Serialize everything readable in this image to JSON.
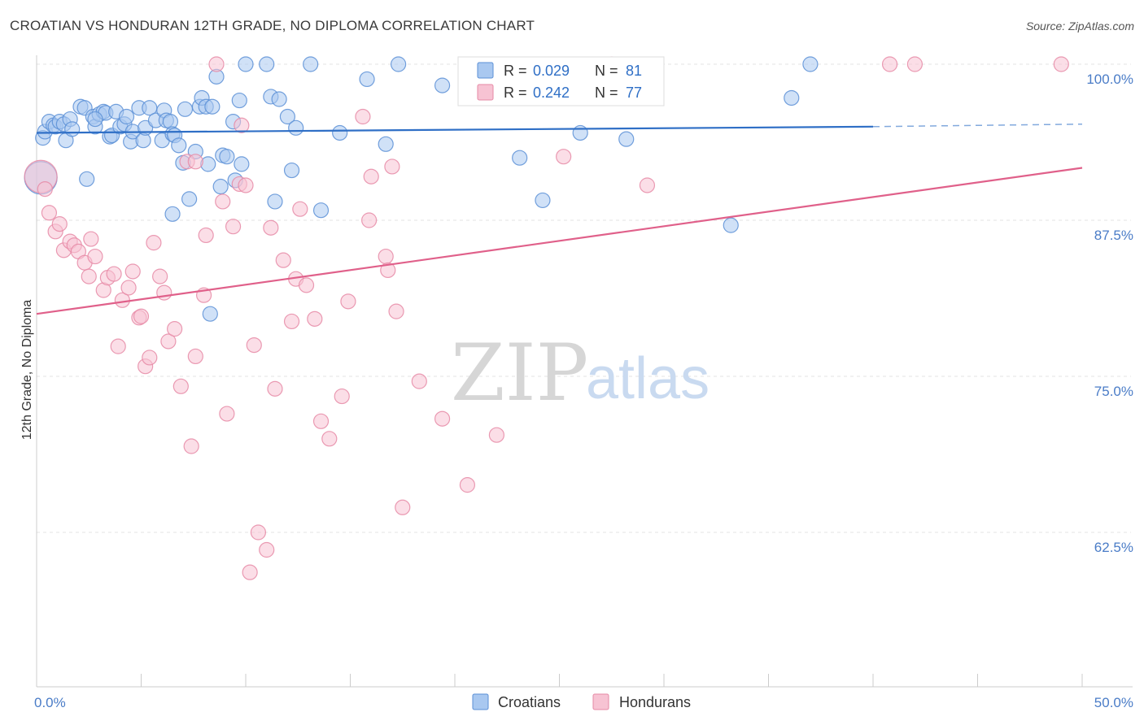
{
  "title": "CROATIAN VS HONDURAN 12TH GRADE, NO DIPLOMA CORRELATION CHART",
  "source": "Source: ZipAtlas.com",
  "watermark": {
    "zip": "ZIP",
    "atlas": "atlas"
  },
  "colors": {
    "croatians_fill": "#a9c8f0",
    "croatians_stroke": "#5b8fd6",
    "croatians_line": "#2f6fc6",
    "hondurans_fill": "#f7c3d3",
    "hondurans_stroke": "#e68aa6",
    "hondurans_line": "#e0608a",
    "tick_text": "#4a7cc7",
    "grid": "#e3e3e3"
  },
  "legend": {
    "rows": [
      {
        "r_label": "R =",
        "r_value": "0.029",
        "n_label": "N =",
        "n_value": "81"
      },
      {
        "r_label": "R =",
        "r_value": "0.242",
        "n_label": "N =",
        "n_value": "77"
      }
    ]
  },
  "chart_data": {
    "type": "scatter",
    "ylabel": "12th Grade, No Diploma",
    "xlim": [
      0,
      50
    ],
    "ylim": [
      50,
      102
    ],
    "x_tick_labels": [
      "0.0%",
      "50.0%"
    ],
    "y_ticks": [
      {
        "value": 100,
        "label": "100.0%"
      },
      {
        "value": 87.5,
        "label": "87.5%"
      },
      {
        "value": 75,
        "label": "75.0%"
      },
      {
        "value": 62.5,
        "label": "62.5%"
      }
    ],
    "grid": true,
    "legend_position": "top-center",
    "series": [
      {
        "name": "Croatians",
        "r": 0.029,
        "n": 81,
        "trend": {
          "x0": 0,
          "y0": 94.5,
          "x1": 40,
          "y1": 95.0,
          "dash_to_x": 50,
          "dash_to_y": 95.2
        },
        "points": [
          [
            0.3,
            94.1
          ],
          [
            0.4,
            94.6
          ],
          [
            0.6,
            95.4
          ],
          [
            0.8,
            95.1
          ],
          [
            0.9,
            95.0
          ],
          [
            1.1,
            95.4
          ],
          [
            1.3,
            95.2
          ],
          [
            1.4,
            93.9
          ],
          [
            1.6,
            95.6
          ],
          [
            1.7,
            94.8
          ],
          [
            2.1,
            96.6
          ],
          [
            2.3,
            96.5
          ],
          [
            2.4,
            90.8
          ],
          [
            2.7,
            95.8
          ],
          [
            2.8,
            95.0
          ],
          [
            3.0,
            96.0
          ],
          [
            3.2,
            96.2
          ],
          [
            3.3,
            96.1
          ],
          [
            3.5,
            94.2
          ],
          [
            3.6,
            94.3
          ],
          [
            3.8,
            96.2
          ],
          [
            4.0,
            95.0
          ],
          [
            4.2,
            95.2
          ],
          [
            4.3,
            95.8
          ],
          [
            4.5,
            93.8
          ],
          [
            4.6,
            94.6
          ],
          [
            4.9,
            96.5
          ],
          [
            5.1,
            93.9
          ],
          [
            5.2,
            94.9
          ],
          [
            5.4,
            96.5
          ],
          [
            5.7,
            95.5
          ],
          [
            6.0,
            93.9
          ],
          [
            6.1,
            96.3
          ],
          [
            6.2,
            95.5
          ],
          [
            6.4,
            95.4
          ],
          [
            6.5,
            94.4
          ],
          [
            6.5,
            88.0
          ],
          [
            6.6,
            94.3
          ],
          [
            6.8,
            93.5
          ],
          [
            7.0,
            92.1
          ],
          [
            7.1,
            96.4
          ],
          [
            7.3,
            89.2
          ],
          [
            7.6,
            93.0
          ],
          [
            7.8,
            96.6
          ],
          [
            7.9,
            97.3
          ],
          [
            8.1,
            96.6
          ],
          [
            8.2,
            92.0
          ],
          [
            8.3,
            80.0
          ],
          [
            8.4,
            96.6
          ],
          [
            8.6,
            99.0
          ],
          [
            8.8,
            90.2
          ],
          [
            8.9,
            92.7
          ],
          [
            9.1,
            92.6
          ],
          [
            9.4,
            95.4
          ],
          [
            9.5,
            90.7
          ],
          [
            9.7,
            97.1
          ],
          [
            9.8,
            92.0
          ],
          [
            10.0,
            100.0
          ],
          [
            11.0,
            100.0
          ],
          [
            11.2,
            97.4
          ],
          [
            11.4,
            89.0
          ],
          [
            11.6,
            97.2
          ],
          [
            12.0,
            95.8
          ],
          [
            12.2,
            91.5
          ],
          [
            12.4,
            94.9
          ],
          [
            13.6,
            88.3
          ],
          [
            14.5,
            94.5
          ],
          [
            15.8,
            98.8
          ],
          [
            16.7,
            93.6
          ],
          [
            17.3,
            100.0
          ],
          [
            19.4,
            98.3
          ],
          [
            23.1,
            92.5
          ],
          [
            24.2,
            89.1
          ],
          [
            26.0,
            94.5
          ],
          [
            28.2,
            94.0
          ],
          [
            33.2,
            87.1
          ],
          [
            36.1,
            97.3
          ],
          [
            37.0,
            100.0
          ],
          [
            0.2,
            90.9
          ],
          [
            2.8,
            95.6
          ],
          [
            13.1,
            100.0
          ]
        ]
      },
      {
        "name": "Hondurans",
        "r": 0.242,
        "n": 77,
        "trend": {
          "x0": 0,
          "y0": 80.0,
          "x1": 50,
          "y1": 91.7
        },
        "points": [
          [
            0.2,
            91.0
          ],
          [
            0.4,
            90.0
          ],
          [
            0.6,
            88.1
          ],
          [
            0.9,
            86.6
          ],
          [
            1.1,
            87.2
          ],
          [
            1.3,
            85.1
          ],
          [
            1.6,
            85.8
          ],
          [
            1.8,
            85.5
          ],
          [
            2.0,
            85.0
          ],
          [
            2.3,
            84.1
          ],
          [
            2.5,
            83.0
          ],
          [
            2.6,
            86.0
          ],
          [
            2.8,
            84.6
          ],
          [
            3.2,
            81.9
          ],
          [
            3.4,
            82.9
          ],
          [
            3.7,
            83.2
          ],
          [
            3.9,
            77.4
          ],
          [
            4.1,
            81.1
          ],
          [
            4.4,
            82.1
          ],
          [
            4.6,
            83.4
          ],
          [
            4.9,
            79.7
          ],
          [
            5.2,
            75.8
          ],
          [
            5.4,
            76.5
          ],
          [
            5.6,
            85.7
          ],
          [
            5.9,
            83.0
          ],
          [
            6.1,
            81.7
          ],
          [
            6.3,
            77.8
          ],
          [
            6.6,
            78.8
          ],
          [
            6.9,
            74.2
          ],
          [
            7.2,
            92.2
          ],
          [
            7.4,
            69.4
          ],
          [
            7.6,
            76.6
          ],
          [
            8.0,
            81.5
          ],
          [
            8.1,
            86.3
          ],
          [
            8.6,
            100.0
          ],
          [
            8.9,
            89.0
          ],
          [
            9.1,
            72.0
          ],
          [
            9.4,
            87.0
          ],
          [
            9.7,
            90.4
          ],
          [
            9.8,
            95.1
          ],
          [
            10.4,
            77.5
          ],
          [
            10.6,
            62.5
          ],
          [
            11.0,
            61.1
          ],
          [
            11.2,
            86.9
          ],
          [
            11.4,
            74.0
          ],
          [
            11.8,
            84.3
          ],
          [
            12.2,
            79.4
          ],
          [
            12.4,
            82.8
          ],
          [
            12.6,
            88.4
          ],
          [
            12.9,
            82.3
          ],
          [
            13.3,
            79.6
          ],
          [
            13.6,
            71.4
          ],
          [
            14.0,
            70.0
          ],
          [
            14.6,
            73.4
          ],
          [
            14.9,
            81.0
          ],
          [
            15.6,
            95.8
          ],
          [
            15.9,
            87.5
          ],
          [
            16.0,
            91.0
          ],
          [
            16.7,
            84.6
          ],
          [
            16.8,
            83.5
          ],
          [
            17.2,
            80.2
          ],
          [
            18.3,
            74.6
          ],
          [
            19.4,
            71.6
          ],
          [
            20.6,
            66.3
          ],
          [
            22.0,
            70.3
          ],
          [
            25.2,
            92.6
          ],
          [
            27.5,
            100.0
          ],
          [
            29.2,
            90.3
          ],
          [
            40.8,
            100.0
          ],
          [
            42.0,
            100.0
          ],
          [
            49.0,
            100.0
          ],
          [
            10.2,
            59.3
          ],
          [
            17.5,
            64.5
          ],
          [
            17.0,
            91.8
          ],
          [
            10.0,
            90.3
          ],
          [
            7.6,
            92.2
          ],
          [
            5.0,
            79.8
          ]
        ]
      }
    ]
  },
  "bottom_legend": [
    "Croatians",
    "Hondurans"
  ]
}
